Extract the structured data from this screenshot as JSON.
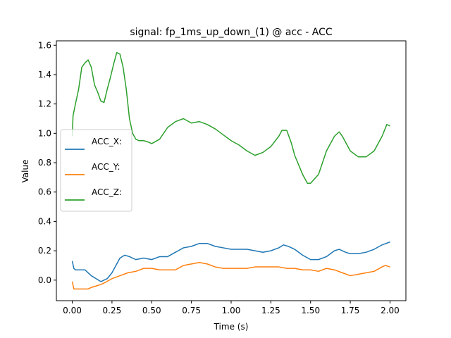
{
  "chart_data": {
    "type": "line",
    "title": "signal: fp_1ms_up_down_(1) @ acc - ACC",
    "xlabel": "Time (s)",
    "ylabel": "Value",
    "xlim": [
      -0.1,
      2.1
    ],
    "ylim": [
      -0.14,
      1.63
    ],
    "x_ticks": [
      0.0,
      0.25,
      0.5,
      0.75,
      1.0,
      1.25,
      1.5,
      1.75,
      2.0
    ],
    "x_tick_labels": [
      "0.00",
      "0.25",
      "0.50",
      "0.75",
      "1.00",
      "1.25",
      "1.50",
      "1.75",
      "2.00"
    ],
    "y_ticks": [
      0.0,
      0.2,
      0.4,
      0.6,
      0.8,
      1.0,
      1.2,
      1.4,
      1.6
    ],
    "y_tick_labels": [
      "0.0",
      "0.2",
      "0.4",
      "0.6",
      "0.8",
      "1.0",
      "1.2",
      "1.4",
      "1.6"
    ],
    "grid": false,
    "legend_position": "center-left",
    "series": [
      {
        "name": "ACC_X:",
        "color": "#1f77b4",
        "x": [
          0.0,
          0.01,
          0.02,
          0.05,
          0.08,
          0.1,
          0.12,
          0.15,
          0.18,
          0.2,
          0.22,
          0.25,
          0.28,
          0.3,
          0.33,
          0.36,
          0.4,
          0.45,
          0.5,
          0.55,
          0.6,
          0.65,
          0.7,
          0.75,
          0.8,
          0.85,
          0.9,
          0.95,
          1.0,
          1.05,
          1.1,
          1.15,
          1.2,
          1.25,
          1.3,
          1.33,
          1.36,
          1.4,
          1.45,
          1.5,
          1.55,
          1.6,
          1.65,
          1.68,
          1.72,
          1.75,
          1.8,
          1.85,
          1.9,
          1.95,
          2.0
        ],
        "y": [
          0.13,
          0.08,
          0.07,
          0.07,
          0.07,
          0.05,
          0.03,
          0.01,
          -0.01,
          0.0,
          0.01,
          0.05,
          0.11,
          0.15,
          0.17,
          0.16,
          0.14,
          0.15,
          0.14,
          0.16,
          0.16,
          0.19,
          0.22,
          0.23,
          0.25,
          0.25,
          0.23,
          0.22,
          0.21,
          0.21,
          0.21,
          0.2,
          0.19,
          0.2,
          0.22,
          0.24,
          0.23,
          0.21,
          0.17,
          0.14,
          0.14,
          0.16,
          0.2,
          0.21,
          0.19,
          0.18,
          0.18,
          0.19,
          0.21,
          0.24,
          0.26
        ]
      },
      {
        "name": "ACC_Y:",
        "color": "#ff7f0e",
        "x": [
          0.0,
          0.01,
          0.02,
          0.05,
          0.1,
          0.12,
          0.15,
          0.18,
          0.2,
          0.25,
          0.3,
          0.35,
          0.4,
          0.45,
          0.5,
          0.55,
          0.6,
          0.65,
          0.7,
          0.75,
          0.8,
          0.85,
          0.9,
          0.95,
          1.0,
          1.05,
          1.1,
          1.15,
          1.2,
          1.25,
          1.3,
          1.35,
          1.4,
          1.45,
          1.5,
          1.55,
          1.6,
          1.65,
          1.7,
          1.75,
          1.8,
          1.85,
          1.9,
          1.95,
          1.97,
          2.0
        ],
        "y": [
          -0.01,
          -0.06,
          -0.06,
          -0.06,
          -0.06,
          -0.05,
          -0.04,
          -0.03,
          -0.02,
          0.01,
          0.03,
          0.05,
          0.06,
          0.08,
          0.08,
          0.07,
          0.07,
          0.07,
          0.1,
          0.11,
          0.12,
          0.11,
          0.09,
          0.08,
          0.08,
          0.08,
          0.08,
          0.09,
          0.09,
          0.09,
          0.09,
          0.08,
          0.08,
          0.07,
          0.07,
          0.06,
          0.08,
          0.07,
          0.05,
          0.03,
          0.04,
          0.05,
          0.06,
          0.09,
          0.1,
          0.09
        ]
      },
      {
        "name": "ACC_Z:",
        "color": "#2ca02c",
        "x": [
          0.0,
          0.005,
          0.02,
          0.04,
          0.06,
          0.08,
          0.1,
          0.12,
          0.14,
          0.16,
          0.18,
          0.2,
          0.22,
          0.24,
          0.26,
          0.28,
          0.3,
          0.32,
          0.34,
          0.36,
          0.38,
          0.4,
          0.42,
          0.45,
          0.48,
          0.5,
          0.55,
          0.6,
          0.65,
          0.7,
          0.75,
          0.8,
          0.85,
          0.9,
          0.95,
          1.0,
          1.05,
          1.1,
          1.15,
          1.2,
          1.25,
          1.3,
          1.32,
          1.35,
          1.38,
          1.4,
          1.45,
          1.48,
          1.5,
          1.55,
          1.6,
          1.65,
          1.68,
          1.7,
          1.75,
          1.8,
          1.85,
          1.9,
          1.95,
          1.98,
          2.0
        ],
        "y": [
          0.98,
          1.12,
          1.2,
          1.3,
          1.45,
          1.48,
          1.5,
          1.45,
          1.33,
          1.28,
          1.22,
          1.21,
          1.3,
          1.38,
          1.47,
          1.55,
          1.54,
          1.45,
          1.3,
          1.1,
          1.0,
          0.96,
          0.95,
          0.95,
          0.94,
          0.93,
          0.96,
          1.04,
          1.08,
          1.1,
          1.07,
          1.08,
          1.06,
          1.03,
          0.99,
          0.95,
          0.92,
          0.88,
          0.85,
          0.87,
          0.91,
          0.98,
          1.02,
          1.02,
          0.93,
          0.85,
          0.72,
          0.66,
          0.66,
          0.72,
          0.88,
          0.98,
          1.01,
          0.98,
          0.88,
          0.84,
          0.84,
          0.88,
          0.98,
          1.06,
          1.05
        ]
      }
    ]
  }
}
